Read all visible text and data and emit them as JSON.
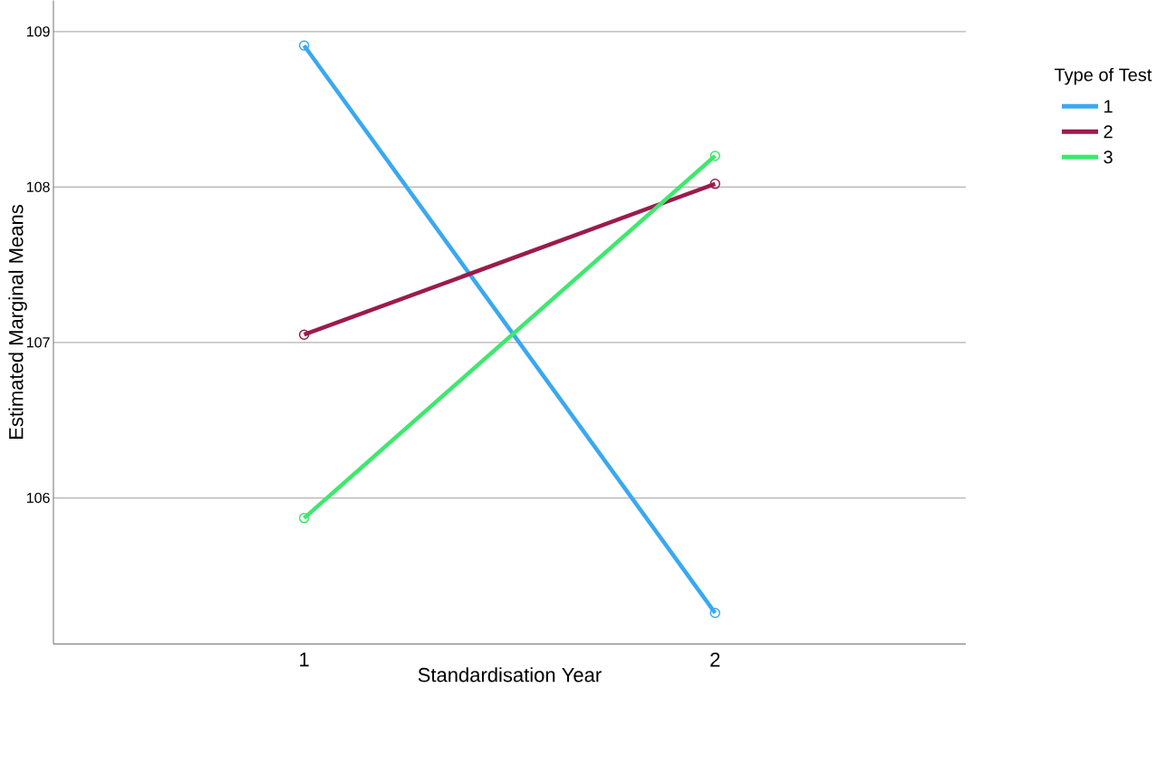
{
  "chart_data": {
    "type": "line",
    "xlabel": "Standardisation Year",
    "ylabel": "Estimated Marginal Means",
    "legend_title": "Type of Test",
    "categories": [
      "1",
      "2"
    ],
    "series": [
      {
        "name": "1",
        "color": "#3aa8f0",
        "values": [
          108.91,
          105.26
        ]
      },
      {
        "name": "2",
        "color": "#9b1b4c",
        "values": [
          107.05,
          108.02
        ]
      },
      {
        "name": "3",
        "color": "#3ee86e",
        "values": [
          105.87,
          108.2
        ]
      }
    ],
    "ylim": [
      105.06,
      109.2
    ],
    "yticks": [
      106,
      107,
      108,
      109
    ],
    "grid": "y",
    "legend": "top right",
    "marker": "circle",
    "line_style": "solid"
  }
}
